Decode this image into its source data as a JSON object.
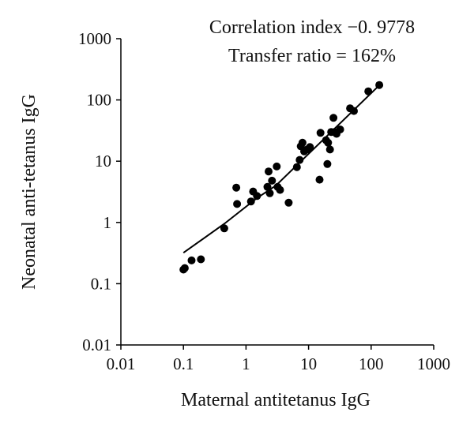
{
  "chart_data": {
    "type": "scatter",
    "title": "",
    "xlabel": "Maternal antitetanus IgG",
    "ylabel": "Neonatal anti-tetanus IgG",
    "x_scale": "log",
    "y_scale": "log",
    "xlim": [
      0.01,
      1000
    ],
    "ylim": [
      0.01,
      1000
    ],
    "x_tick_labels": [
      "0.01",
      "0.1",
      "1",
      "10",
      "100",
      "1000"
    ],
    "y_tick_labels": [
      "0.01",
      "0.1",
      "1",
      "10",
      "100",
      "1000"
    ],
    "x_ticks": [
      0.01,
      0.1,
      1,
      10,
      100,
      1000
    ],
    "y_ticks": [
      0.01,
      0.1,
      1,
      10,
      100,
      1000
    ],
    "grid": false,
    "annotations": [
      "Correlation index −0. 9778",
      "Transfer ratio = 162%"
    ],
    "series": [
      {
        "type": "scatter",
        "color": "#000000",
        "points": [
          [
            0.1,
            0.17
          ],
          [
            0.105,
            0.18
          ],
          [
            0.135,
            0.24
          ],
          [
            0.19,
            0.25
          ],
          [
            0.45,
            0.8
          ],
          [
            0.7,
            3.7
          ],
          [
            0.72,
            2.0
          ],
          [
            1.2,
            2.2
          ],
          [
            1.3,
            3.2
          ],
          [
            1.5,
            2.7
          ],
          [
            2.2,
            3.8
          ],
          [
            2.3,
            6.8
          ],
          [
            2.4,
            3.0
          ],
          [
            2.6,
            4.8
          ],
          [
            3.1,
            8.2
          ],
          [
            3.2,
            3.8
          ],
          [
            3.5,
            3.4
          ],
          [
            4.8,
            2.1
          ],
          [
            6.5,
            8.0
          ],
          [
            7.2,
            10.5
          ],
          [
            7.5,
            17.5
          ],
          [
            8.0,
            20.0
          ],
          [
            8.5,
            14.5
          ],
          [
            9.5,
            15.5
          ],
          [
            10.5,
            17.0
          ],
          [
            15.0,
            5.0
          ],
          [
            15.5,
            29.0
          ],
          [
            19.0,
            22.0
          ],
          [
            20.0,
            9.0
          ],
          [
            20.5,
            20.0
          ],
          [
            22.0,
            15.5
          ],
          [
            23.0,
            30.0
          ],
          [
            25.0,
            51.0
          ],
          [
            26.0,
            30.0
          ],
          [
            28.0,
            28.0
          ],
          [
            32.0,
            33.0
          ],
          [
            46.0,
            73.0
          ],
          [
            53.0,
            66.0
          ],
          [
            90.0,
            138.0
          ],
          [
            135.0,
            175.0
          ]
        ]
      },
      {
        "type": "line",
        "color": "#000000",
        "points": [
          [
            0.1,
            0.32
          ],
          [
            0.45,
            0.95
          ],
          [
            1.5,
            2.5
          ],
          [
            3.0,
            4.0
          ],
          [
            140.0,
            180.0
          ]
        ]
      }
    ]
  }
}
